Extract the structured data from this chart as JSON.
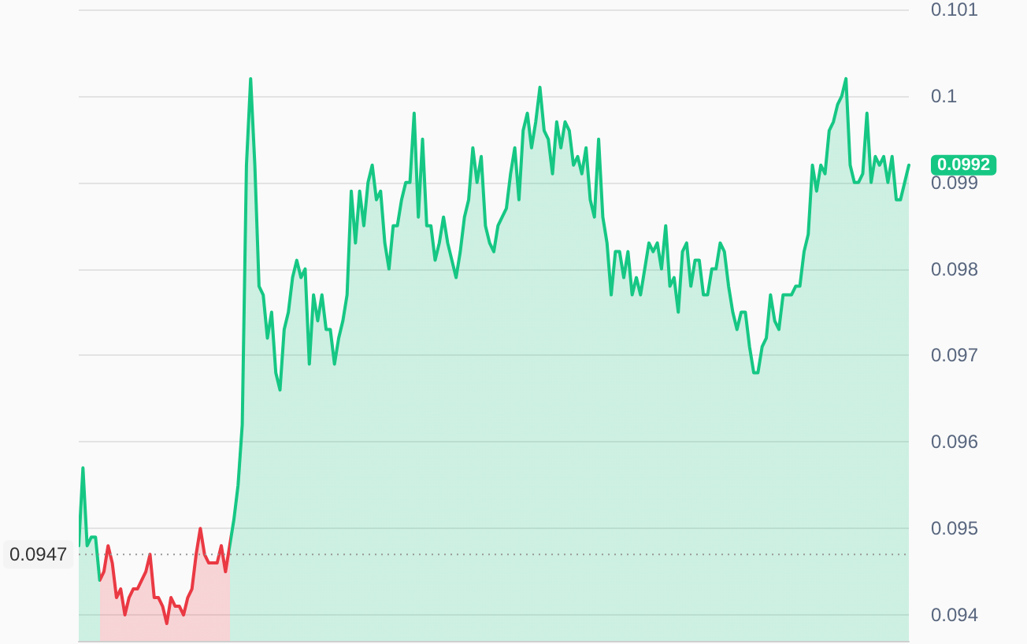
{
  "chart_data": {
    "type": "area",
    "categories": [
      null,
      null,
      null,
      null,
      null,
      null,
      null,
      null,
      null,
      null,
      null,
      null,
      null,
      null,
      null,
      null,
      null,
      null,
      null,
      null,
      null,
      null,
      null,
      null,
      null,
      null,
      null,
      null,
      null,
      null,
      null,
      null,
      null,
      null,
      null,
      null,
      null,
      null,
      null,
      null,
      null,
      null,
      null,
      null,
      null,
      null,
      null,
      null,
      null,
      null,
      null,
      null,
      null,
      null,
      null,
      null,
      null,
      null,
      null,
      null,
      null,
      null,
      null,
      null,
      null,
      null,
      null,
      null,
      null,
      null,
      null,
      null,
      null,
      null,
      null,
      null,
      null,
      null,
      null,
      null,
      null,
      null,
      null,
      null,
      null,
      null,
      null,
      null,
      null,
      null,
      null,
      null,
      null,
      null,
      null,
      null,
      null,
      null,
      null,
      null,
      null,
      null,
      null,
      null,
      null,
      null,
      null,
      null,
      null,
      null,
      null,
      null,
      null,
      null,
      null,
      null,
      null,
      null,
      null,
      null,
      null,
      null,
      null,
      null,
      null,
      null,
      null,
      null,
      null,
      null,
      null,
      null,
      null,
      null,
      null,
      null,
      null,
      null,
      null,
      null,
      null,
      null,
      null,
      null,
      null,
      null,
      null,
      null,
      null,
      null,
      null,
      null,
      null,
      null,
      null,
      null,
      null,
      null,
      null,
      null,
      null,
      null,
      null,
      null,
      null,
      null,
      null,
      null,
      null,
      null,
      null,
      null,
      null,
      null,
      null,
      null,
      null,
      null,
      null,
      null,
      null,
      null,
      null,
      null,
      null,
      null,
      null,
      null,
      null,
      null,
      null,
      null,
      null,
      null,
      null,
      null,
      null,
      null,
      null
    ],
    "series": [
      {
        "color": "#16c784",
        "values": [
          0.0948,
          0.0957,
          0.0948,
          0.0949,
          0.0949,
          0.0944,
          0.0945,
          0.0948,
          0.0946,
          0.0942,
          0.0943,
          0.094,
          0.0942,
          0.0943,
          0.0943,
          0.0944,
          0.0945,
          0.0947,
          0.0942,
          0.0942,
          0.0941,
          0.0939,
          0.0942,
          0.0941,
          0.0941,
          0.094,
          0.0942,
          0.0943,
          0.0947,
          0.095,
          0.0947,
          0.0946,
          0.0946,
          0.0946,
          0.0948,
          0.0945,
          0.0948,
          0.0951,
          0.0955,
          0.0962,
          0.0992,
          0.1002,
          0.0992,
          0.0978,
          0.0977,
          0.0972,
          0.0975,
          0.0968,
          0.0966,
          0.0973,
          0.0975,
          0.0979,
          0.0981,
          0.0979,
          0.098,
          0.0969,
          0.0977,
          0.0974,
          0.0977,
          0.0973,
          0.0973,
          0.0969,
          0.0972,
          0.0974,
          0.0977,
          0.0989,
          0.0983,
          0.0989,
          0.0985,
          0.099,
          0.0992,
          0.0988,
          0.0989,
          0.0983,
          0.098,
          0.0985,
          0.0985,
          0.0988,
          0.099,
          0.099,
          0.0998,
          0.0986,
          0.0995,
          0.0985,
          0.0985,
          0.0981,
          0.0983,
          0.0986,
          0.0983,
          0.0981,
          0.0979,
          0.0982,
          0.0986,
          0.0988,
          0.0994,
          0.099,
          0.0993,
          0.0985,
          0.0983,
          0.0982,
          0.0985,
          0.0986,
          0.0987,
          0.0991,
          0.0994,
          0.0988,
          0.0996,
          0.0998,
          0.0994,
          0.0997,
          0.1001,
          0.0996,
          0.0995,
          0.0991,
          0.0997,
          0.0994,
          0.0997,
          0.0996,
          0.0992,
          0.0993,
          0.0991,
          0.0994,
          0.0988,
          0.0986,
          0.0995,
          0.0986,
          0.0983,
          0.0977,
          0.0982,
          0.0982,
          0.0979,
          0.0982,
          0.0977,
          0.0979,
          0.0977,
          0.098,
          0.0983,
          0.0982,
          0.0983,
          0.098,
          0.0985,
          0.0978,
          0.0979,
          0.0975,
          0.0982,
          0.0983,
          0.0978,
          0.0981,
          0.0981,
          0.0977,
          0.0977,
          0.098,
          0.098,
          0.0983,
          0.0982,
          0.0978,
          0.0975,
          0.0973,
          0.0975,
          0.0975,
          0.0971,
          0.0968,
          0.0968,
          0.0971,
          0.0972,
          0.0977,
          0.0974,
          0.0973,
          0.0977,
          0.0977,
          0.0977,
          0.0978,
          0.0978,
          0.0982,
          0.0984,
          0.0992,
          0.0989,
          0.0992,
          0.0991,
          0.0996,
          0.0997,
          0.0999,
          0.1,
          0.1002,
          0.0992,
          0.099,
          0.099,
          0.0991,
          0.0998,
          0.099,
          0.0993,
          0.0992,
          0.0993,
          0.099,
          0.0993,
          0.0988,
          0.0988,
          0.099,
          0.0992
        ],
        "colors": [
          "#16c784",
          "#16c784",
          "#16c784",
          "#16c784",
          "#16c784",
          "#ea3943",
          "#ea3943",
          "#ea3943",
          "#ea3943",
          "#ea3943",
          "#ea3943",
          "#ea3943",
          "#ea3943",
          "#ea3943",
          "#ea3943",
          "#ea3943",
          "#ea3943",
          "#ea3943",
          "#ea3943",
          "#ea3943",
          "#ea3943",
          "#ea3943",
          "#ea3943",
          "#ea3943",
          "#ea3943",
          "#ea3943",
          "#ea3943",
          "#ea3943",
          "#ea3943",
          "#ea3943",
          "#ea3943",
          "#ea3943",
          "#ea3943",
          "#ea3943",
          "#ea3943",
          "#ea3943",
          "#16c784",
          "#16c784",
          "#16c784",
          "#16c784",
          "#16c784",
          "#16c784",
          "#16c784",
          "#16c784",
          "#16c784",
          "#16c784",
          "#16c784",
          "#16c784",
          "#16c784",
          "#16c784",
          "#16c784",
          "#16c784",
          "#16c784",
          "#16c784",
          "#16c784",
          "#16c784",
          "#16c784",
          "#16c784",
          "#16c784",
          "#16c784",
          "#16c784",
          "#16c784",
          "#16c784",
          "#16c784",
          "#16c784",
          "#16c784",
          "#16c784",
          "#16c784",
          "#16c784",
          "#16c784",
          "#16c784",
          "#16c784",
          "#16c784",
          "#16c784",
          "#16c784",
          "#16c784",
          "#16c784",
          "#16c784",
          "#16c784",
          "#16c784",
          "#16c784",
          "#16c784",
          "#16c784",
          "#16c784",
          "#16c784",
          "#16c784",
          "#16c784",
          "#16c784",
          "#16c784",
          "#16c784",
          "#16c784",
          "#16c784",
          "#16c784",
          "#16c784",
          "#16c784",
          "#16c784",
          "#16c784",
          "#16c784",
          "#16c784",
          "#16c784",
          "#16c784",
          "#16c784",
          "#16c784",
          "#16c784",
          "#16c784",
          "#16c784",
          "#16c784",
          "#16c784",
          "#16c784",
          "#16c784",
          "#16c784",
          "#16c784",
          "#16c784",
          "#16c784",
          "#16c784",
          "#16c784",
          "#16c784",
          "#16c784",
          "#16c784",
          "#16c784",
          "#16c784",
          "#16c784",
          "#16c784",
          "#16c784",
          "#16c784",
          "#16c784",
          "#16c784",
          "#16c784",
          "#16c784",
          "#16c784",
          "#16c784",
          "#16c784",
          "#16c784",
          "#16c784",
          "#16c784",
          "#16c784",
          "#16c784",
          "#16c784",
          "#16c784",
          "#16c784",
          "#16c784",
          "#16c784",
          "#16c784",
          "#16c784",
          "#16c784",
          "#16c784",
          "#16c784",
          "#16c784",
          "#16c784",
          "#16c784",
          "#16c784",
          "#16c784",
          "#16c784",
          "#16c784",
          "#16c784",
          "#16c784",
          "#16c784",
          "#16c784",
          "#16c784",
          "#16c784",
          "#16c784",
          "#16c784",
          "#16c784",
          "#16c784",
          "#16c784",
          "#16c784",
          "#16c784",
          "#16c784",
          "#16c784",
          "#16c784",
          "#16c784",
          "#16c784",
          "#16c784",
          "#16c784",
          "#16c784",
          "#16c784",
          "#16c784",
          "#16c784",
          "#16c784",
          "#16c784",
          "#16c784",
          "#16c784",
          "#16c784",
          "#16c784",
          "#16c784",
          "#16c784",
          "#16c784",
          "#16c784",
          "#16c784",
          "#16c784",
          "#16c784",
          "#16c784",
          "#16c784",
          "#16c784",
          "#16c784",
          "#16c784",
          "#16c784",
          "#16c784",
          "#16c784"
        ]
      }
    ],
    "ylim": [
      0.0937,
      0.101
    ],
    "yticks": [
      0.094,
      0.095,
      0.096,
      0.097,
      0.098,
      0.099,
      0.1,
      0.101
    ],
    "grid": "y",
    "marker": "none",
    "line_style": "solid",
    "ref_lines": [
      {
        "axis": "y",
        "value": 0.0947,
        "label": "0.0947",
        "color": "#999999",
        "line_style": "dotted"
      }
    ],
    "annotations": [
      "0.0992"
    ]
  }
}
